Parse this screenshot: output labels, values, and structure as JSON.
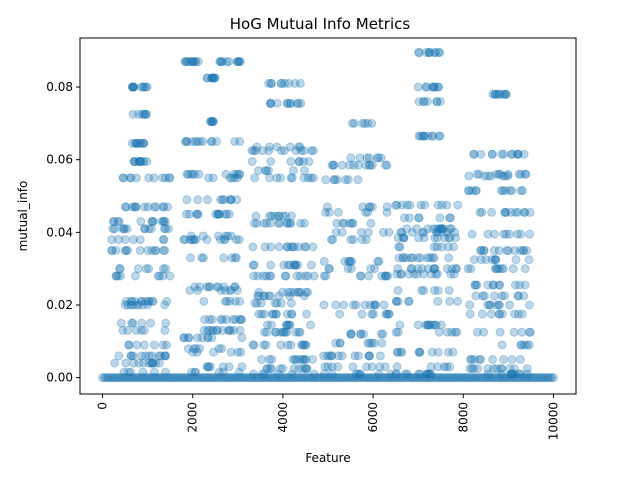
{
  "chart_data": {
    "type": "scatter",
    "title": "HoG Mutual Info Metrics",
    "xlabel": "Feature",
    "ylabel": "mutual_info",
    "xlim": [
      -500,
      10500
    ],
    "ylim": [
      -0.0045,
      0.0935
    ],
    "xticks": [
      0,
      2000,
      4000,
      6000,
      8000,
      10000
    ],
    "xtick_labels": [
      "0",
      "2000",
      "4000",
      "6000",
      "8000",
      "10000"
    ],
    "xtick_rotation": 90,
    "yticks": [
      0.0,
      0.02,
      0.04,
      0.06,
      0.08
    ],
    "ytick_labels": [
      "0.00",
      "0.02",
      "0.04",
      "0.06",
      "0.08"
    ],
    "grid": false,
    "legend": "none",
    "marker_color": "#1f77b4",
    "marker_alpha": 0.3,
    "baseline": {
      "x_start": 0,
      "x_end": 10000,
      "y": 0.0
    },
    "clusters": [
      {
        "x_range": [
          200,
          1500
        ],
        "y_levels": [
          0.0015,
          0.004,
          0.006,
          0.009,
          0.013,
          0.015,
          0.02,
          0.021,
          0.028,
          0.03,
          0.035,
          0.038,
          0.041,
          0.043,
          0.047,
          0.055
        ]
      },
      {
        "x_range": [
          650,
          1000
        ],
        "y_levels": [
          0.0595,
          0.0645,
          0.0725,
          0.08
        ]
      },
      {
        "x_range": [
          1800,
          3100
        ],
        "y_levels": [
          0.0015,
          0.003,
          0.007,
          0.008,
          0.011,
          0.013,
          0.016,
          0.021,
          0.024,
          0.025,
          0.033,
          0.038,
          0.039,
          0.045,
          0.049,
          0.055,
          0.056,
          0.065
        ]
      },
      {
        "x_range": [
          2300,
          2500
        ],
        "y_levels": [
          0.0705,
          0.0825
        ]
      },
      {
        "x_range": [
          1800,
          2300
        ],
        "y_levels": [
          0.087
        ]
      },
      {
        "x_range": [
          2600,
          3100
        ],
        "y_levels": [
          0.087
        ]
      },
      {
        "x_range": [
          3300,
          4700
        ],
        "y_levels": [
          0.001,
          0.0025,
          0.005,
          0.009,
          0.0125,
          0.0145,
          0.0175,
          0.0205,
          0.0225,
          0.0235,
          0.028,
          0.031,
          0.036,
          0.0425,
          0.0445,
          0.055,
          0.057,
          0.0595,
          0.0625,
          0.0635
        ]
      },
      {
        "x_range": [
          3600,
          4400
        ],
        "y_levels": [
          0.0755,
          0.081
        ]
      },
      {
        "x_range": [
          4900,
          6400
        ],
        "y_levels": [
          0.001,
          0.003,
          0.006,
          0.0095,
          0.012,
          0.0175,
          0.02,
          0.028,
          0.03,
          0.032,
          0.038,
          0.04,
          0.0425,
          0.0455,
          0.047,
          0.0545,
          0.0585,
          0.0605
        ]
      },
      {
        "x_range": [
          5300,
          6000
        ],
        "y_levels": [
          0.07
        ]
      },
      {
        "x_range": [
          6500,
          7900
        ],
        "y_levels": [
          0.001,
          0.003,
          0.007,
          0.0125,
          0.0145,
          0.021,
          0.024,
          0.0285,
          0.03,
          0.033,
          0.036,
          0.0385,
          0.04,
          0.041,
          0.044,
          0.0475
        ]
      },
      {
        "x_range": [
          7000,
          7500
        ],
        "y_levels": [
          0.0665,
          0.076,
          0.08,
          0.0895
        ]
      },
      {
        "x_range": [
          8100,
          9500
        ],
        "y_levels": [
          0.001,
          0.0025,
          0.005,
          0.009,
          0.0125,
          0.0175,
          0.02,
          0.0225,
          0.0255,
          0.03,
          0.0325,
          0.035,
          0.0395,
          0.0455,
          0.0515,
          0.0555,
          0.056,
          0.0615
        ]
      },
      {
        "x_range": [
          8600,
          9000
        ],
        "y_levels": [
          0.078
        ]
      }
    ]
  }
}
